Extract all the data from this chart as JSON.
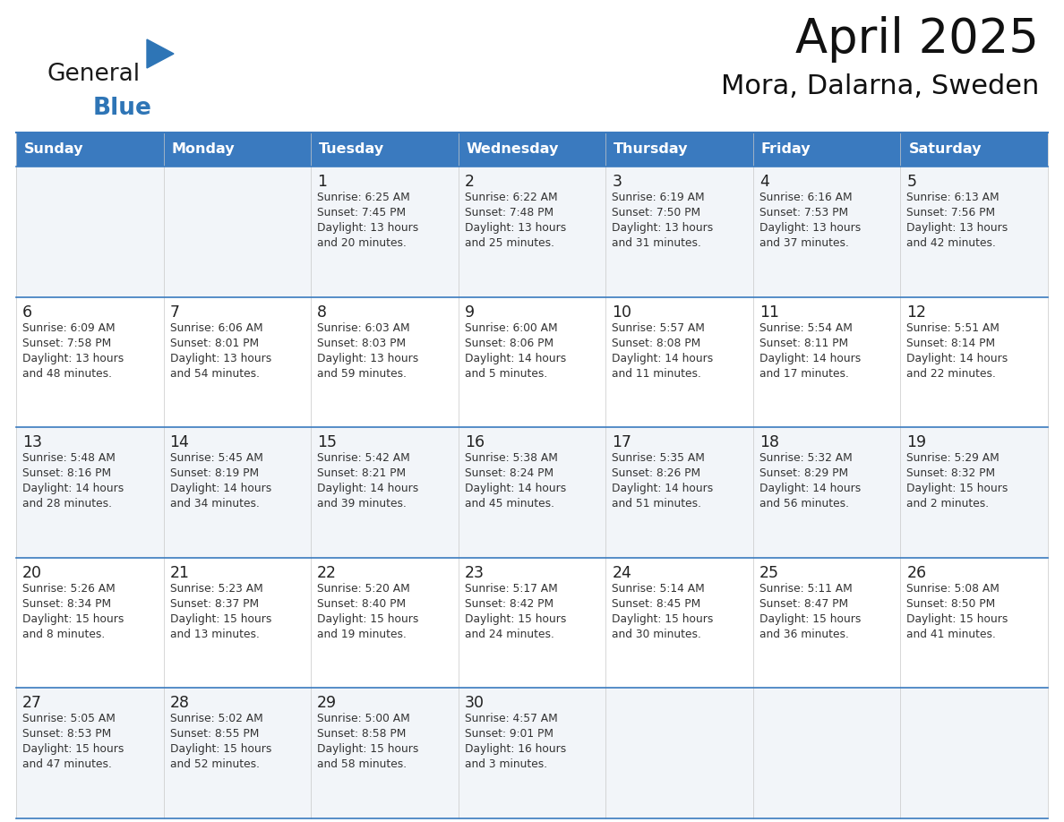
{
  "title": "April 2025",
  "subtitle": "Mora, Dalarna, Sweden",
  "header_bg_color": "#3a7abf",
  "header_text_color": "#ffffff",
  "row_bg_even": "#f2f5f9",
  "row_bg_odd": "#ffffff",
  "text_color": "#333333",
  "day_num_color": "#222222",
  "border_color": "#3a7abf",
  "days_of_week": [
    "Sunday",
    "Monday",
    "Tuesday",
    "Wednesday",
    "Thursday",
    "Friday",
    "Saturday"
  ],
  "logo_black": "#1a1a1a",
  "logo_blue": "#2e75b6",
  "weeks": [
    [
      {
        "day": "",
        "info": ""
      },
      {
        "day": "",
        "info": ""
      },
      {
        "day": "1",
        "info": "Sunrise: 6:25 AM\nSunset: 7:45 PM\nDaylight: 13 hours\nand 20 minutes."
      },
      {
        "day": "2",
        "info": "Sunrise: 6:22 AM\nSunset: 7:48 PM\nDaylight: 13 hours\nand 25 minutes."
      },
      {
        "day": "3",
        "info": "Sunrise: 6:19 AM\nSunset: 7:50 PM\nDaylight: 13 hours\nand 31 minutes."
      },
      {
        "day": "4",
        "info": "Sunrise: 6:16 AM\nSunset: 7:53 PM\nDaylight: 13 hours\nand 37 minutes."
      },
      {
        "day": "5",
        "info": "Sunrise: 6:13 AM\nSunset: 7:56 PM\nDaylight: 13 hours\nand 42 minutes."
      }
    ],
    [
      {
        "day": "6",
        "info": "Sunrise: 6:09 AM\nSunset: 7:58 PM\nDaylight: 13 hours\nand 48 minutes."
      },
      {
        "day": "7",
        "info": "Sunrise: 6:06 AM\nSunset: 8:01 PM\nDaylight: 13 hours\nand 54 minutes."
      },
      {
        "day": "8",
        "info": "Sunrise: 6:03 AM\nSunset: 8:03 PM\nDaylight: 13 hours\nand 59 minutes."
      },
      {
        "day": "9",
        "info": "Sunrise: 6:00 AM\nSunset: 8:06 PM\nDaylight: 14 hours\nand 5 minutes."
      },
      {
        "day": "10",
        "info": "Sunrise: 5:57 AM\nSunset: 8:08 PM\nDaylight: 14 hours\nand 11 minutes."
      },
      {
        "day": "11",
        "info": "Sunrise: 5:54 AM\nSunset: 8:11 PM\nDaylight: 14 hours\nand 17 minutes."
      },
      {
        "day": "12",
        "info": "Sunrise: 5:51 AM\nSunset: 8:14 PM\nDaylight: 14 hours\nand 22 minutes."
      }
    ],
    [
      {
        "day": "13",
        "info": "Sunrise: 5:48 AM\nSunset: 8:16 PM\nDaylight: 14 hours\nand 28 minutes."
      },
      {
        "day": "14",
        "info": "Sunrise: 5:45 AM\nSunset: 8:19 PM\nDaylight: 14 hours\nand 34 minutes."
      },
      {
        "day": "15",
        "info": "Sunrise: 5:42 AM\nSunset: 8:21 PM\nDaylight: 14 hours\nand 39 minutes."
      },
      {
        "day": "16",
        "info": "Sunrise: 5:38 AM\nSunset: 8:24 PM\nDaylight: 14 hours\nand 45 minutes."
      },
      {
        "day": "17",
        "info": "Sunrise: 5:35 AM\nSunset: 8:26 PM\nDaylight: 14 hours\nand 51 minutes."
      },
      {
        "day": "18",
        "info": "Sunrise: 5:32 AM\nSunset: 8:29 PM\nDaylight: 14 hours\nand 56 minutes."
      },
      {
        "day": "19",
        "info": "Sunrise: 5:29 AM\nSunset: 8:32 PM\nDaylight: 15 hours\nand 2 minutes."
      }
    ],
    [
      {
        "day": "20",
        "info": "Sunrise: 5:26 AM\nSunset: 8:34 PM\nDaylight: 15 hours\nand 8 minutes."
      },
      {
        "day": "21",
        "info": "Sunrise: 5:23 AM\nSunset: 8:37 PM\nDaylight: 15 hours\nand 13 minutes."
      },
      {
        "day": "22",
        "info": "Sunrise: 5:20 AM\nSunset: 8:40 PM\nDaylight: 15 hours\nand 19 minutes."
      },
      {
        "day": "23",
        "info": "Sunrise: 5:17 AM\nSunset: 8:42 PM\nDaylight: 15 hours\nand 24 minutes."
      },
      {
        "day": "24",
        "info": "Sunrise: 5:14 AM\nSunset: 8:45 PM\nDaylight: 15 hours\nand 30 minutes."
      },
      {
        "day": "25",
        "info": "Sunrise: 5:11 AM\nSunset: 8:47 PM\nDaylight: 15 hours\nand 36 minutes."
      },
      {
        "day": "26",
        "info": "Sunrise: 5:08 AM\nSunset: 8:50 PM\nDaylight: 15 hours\nand 41 minutes."
      }
    ],
    [
      {
        "day": "27",
        "info": "Sunrise: 5:05 AM\nSunset: 8:53 PM\nDaylight: 15 hours\nand 47 minutes."
      },
      {
        "day": "28",
        "info": "Sunrise: 5:02 AM\nSunset: 8:55 PM\nDaylight: 15 hours\nand 52 minutes."
      },
      {
        "day": "29",
        "info": "Sunrise: 5:00 AM\nSunset: 8:58 PM\nDaylight: 15 hours\nand 58 minutes."
      },
      {
        "day": "30",
        "info": "Sunrise: 4:57 AM\nSunset: 9:01 PM\nDaylight: 16 hours\nand 3 minutes."
      },
      {
        "day": "",
        "info": ""
      },
      {
        "day": "",
        "info": ""
      },
      {
        "day": "",
        "info": ""
      }
    ]
  ]
}
